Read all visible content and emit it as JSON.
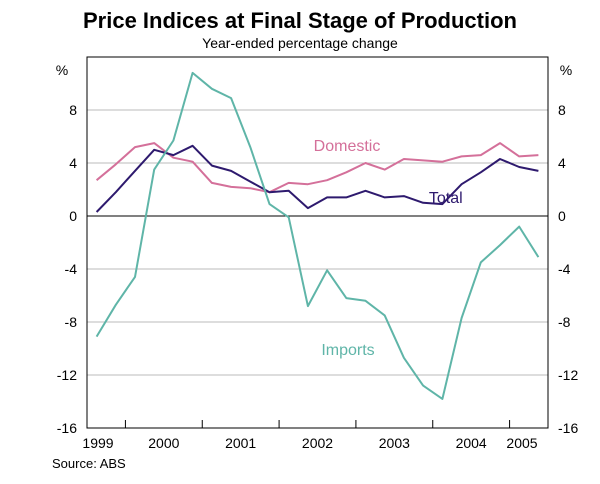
{
  "chart_data": {
    "type": "line",
    "title": "Price Indices at Final Stage of Production",
    "subtitle": "Year-ended percentage change",
    "ylabel_left": "%",
    "ylabel_right": "%",
    "source": "Source: ABS",
    "ylim": [
      -16,
      12
    ],
    "yticks": [
      -16,
      -12,
      -8,
      -4,
      0,
      4,
      8
    ],
    "xlim": [
      1999.5,
      2005.5
    ],
    "year_labels": [
      "1999",
      "2000",
      "2001",
      "2002",
      "2003",
      "2004",
      "2005"
    ],
    "grid": true,
    "x": [
      "1999 Q3",
      "1999 Q4",
      "2000 Q1",
      "2000 Q2",
      "2000 Q3",
      "2000 Q4",
      "2001 Q1",
      "2001 Q2",
      "2001 Q3",
      "2001 Q4",
      "2002 Q1",
      "2002 Q2",
      "2002 Q3",
      "2002 Q4",
      "2003 Q1",
      "2003 Q2",
      "2003 Q3",
      "2003 Q4",
      "2004 Q1",
      "2004 Q2",
      "2004 Q3",
      "2004 Q4",
      "2005 Q1",
      "2005 Q2"
    ],
    "series": [
      {
        "name": "Domestic",
        "color": "#d4709a",
        "values": [
          2.7,
          3.9,
          5.2,
          5.5,
          4.4,
          4.1,
          2.5,
          2.2,
          2.1,
          1.8,
          2.5,
          2.4,
          2.7,
          3.3,
          4.0,
          3.5,
          4.3,
          4.2,
          4.1,
          4.5,
          4.6,
          5.5,
          4.5,
          4.6
        ]
      },
      {
        "name": "Total",
        "color": "#2e1a6e",
        "values": [
          0.3,
          1.8,
          3.4,
          5.0,
          4.6,
          5.3,
          3.8,
          3.4,
          2.6,
          1.8,
          1.9,
          0.6,
          1.4,
          1.4,
          1.9,
          1.4,
          1.5,
          1.0,
          0.9,
          2.4,
          3.3,
          4.3,
          3.7,
          3.4
        ]
      },
      {
        "name": "Imports",
        "color": "#5fb5a8",
        "values": [
          -9.1,
          -6.7,
          -4.6,
          3.5,
          5.7,
          10.8,
          9.6,
          8.9,
          5.2,
          0.9,
          -0.1,
          -6.8,
          -4.1,
          -6.2,
          -6.4,
          -7.5,
          -10.7,
          -12.8,
          -13.8,
          -7.7,
          -3.5,
          -2.2,
          -0.8,
          -3.1
        ]
      }
    ]
  }
}
